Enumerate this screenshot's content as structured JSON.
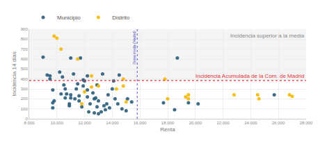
{
  "chart_data": {
    "type": "scatter",
    "x_label": "Renta",
    "y_label": "Incidencia 14 días",
    "series": [
      {
        "name": "Municipio",
        "color": "#2a5d7c",
        "marker": "circle",
        "x": [
          9000,
          9300,
          9500,
          9500,
          9700,
          9800,
          9700,
          10200,
          10400,
          10500,
          10600,
          10700,
          10900,
          11000,
          11200,
          11000,
          11300,
          11400,
          11500,
          11600,
          11800,
          11900,
          12000,
          11900,
          12200,
          12200,
          12400,
          12600,
          12700,
          12700,
          12800,
          12900,
          13000,
          13200,
          13400,
          13500,
          13600,
          13700,
          13800,
          14000,
          14100,
          14200,
          14400,
          14700,
          15000,
          14500,
          15100,
          13300,
          12200,
          11700,
          11000,
          10300,
          10600,
          10900,
          9700,
          15400,
          17700,
          18500,
          18700,
          19500,
          20200,
          25700,
          13000,
          12300,
          11600,
          12900
        ],
        "values": [
          620,
          440,
          400,
          430,
          290,
          180,
          110,
          470,
          420,
          340,
          300,
          250,
          150,
          610,
          450,
          210,
          200,
          300,
          350,
          230,
          120,
          390,
          380,
          330,
          290,
          220,
          150,
          260,
          200,
          60,
          210,
          340,
          180,
          70,
          130,
          90,
          150,
          240,
          110,
          300,
          380,
          200,
          150,
          100,
          80,
          440,
          200,
          450,
          430,
          610,
          240,
          250,
          210,
          130,
          160,
          170,
          160,
          90,
          610,
          160,
          150,
          240,
          50,
          70,
          180,
          120
        ]
      },
      {
        "name": "Distrito",
        "color": "#f5b800",
        "marker": "circle",
        "x": [
          9800,
          10000,
          10300,
          11500,
          12500,
          12000,
          12500,
          11800,
          14300,
          14800,
          14800,
          15000,
          17800,
          18000,
          19300,
          19500,
          19500,
          22800,
          24500,
          24600,
          26800,
          27000,
          13000
        ],
        "values": [
          830,
          810,
          700,
          600,
          430,
          270,
          320,
          150,
          300,
          400,
          330,
          170,
          400,
          200,
          220,
          240,
          200,
          240,
          240,
          200,
          240,
          225,
          330
        ]
      }
    ],
    "xlim": [
      8000,
      28000
    ],
    "ylim": [
      0,
      900
    ],
    "xticks": [
      {
        "value": 8000,
        "label": "8.000"
      },
      {
        "value": 10000,
        "label": "10.000"
      },
      {
        "value": 12000,
        "label": "12.000"
      },
      {
        "value": 14000,
        "label": "14.000"
      },
      {
        "value": 16000,
        "label": "16.000"
      },
      {
        "value": 18000,
        "label": "18.000"
      },
      {
        "value": 20000,
        "label": "20.000"
      },
      {
        "value": 22000,
        "label": "22.000"
      },
      {
        "value": 24000,
        "label": "24.000"
      },
      {
        "value": 26000,
        "label": "26.000"
      },
      {
        "value": 28000,
        "label": "28.000"
      }
    ],
    "yticks": [
      0,
      100,
      200,
      300,
      400,
      500,
      600,
      700,
      800,
      900
    ],
    "grid": true,
    "legend": "top left",
    "reference_lines": [
      {
        "axis": "x",
        "value": 15800,
        "label": "Renta media (Madrid)"
      },
      {
        "axis": "y",
        "value": 385,
        "label": "Incidencia Acumulada de la Com. de Madrid"
      }
    ],
    "annotations": [
      {
        "text": "Incidencia superior a la media"
      }
    ]
  }
}
